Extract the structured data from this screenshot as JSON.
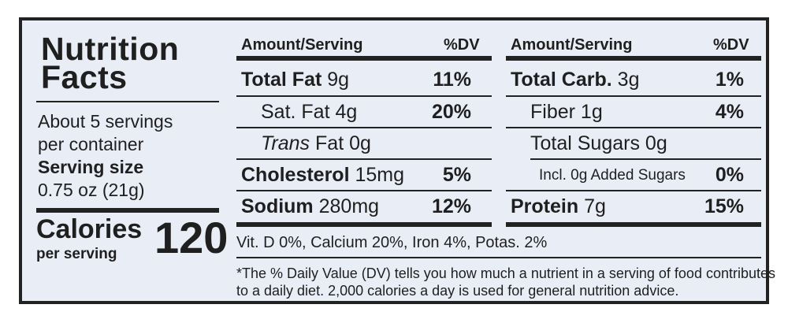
{
  "title": {
    "line1": "Nutrition",
    "line2": "Facts"
  },
  "servings": {
    "line1": "About 5 servings",
    "line2": "per container",
    "size_label": "Serving size",
    "size_value": "0.75 oz (21g)"
  },
  "calories": {
    "label": "Calories",
    "sub": "per serving",
    "value": "120"
  },
  "headers": {
    "amount": "Amount/Serving",
    "dv": "%DV"
  },
  "left_col": {
    "total_fat": {
      "name": "Total Fat",
      "amount": "9g",
      "dv": "11%"
    },
    "sat_fat": {
      "name": "Sat. Fat",
      "amount": "4g",
      "dv": "20%"
    },
    "trans_fat": {
      "name": "Trans",
      "rest": "Fat 0g"
    },
    "cholesterol": {
      "name": "Cholesterol",
      "amount": "15mg",
      "dv": "5%"
    },
    "sodium": {
      "name": "Sodium",
      "amount": "280mg",
      "dv": "12%"
    }
  },
  "right_col": {
    "total_carb": {
      "name": "Total Carb.",
      "amount": "3g",
      "dv": "1%"
    },
    "fiber": {
      "name": "Fiber",
      "amount": "1g",
      "dv": "4%"
    },
    "total_sugars": {
      "name": "Total Sugars",
      "amount": "0g"
    },
    "added_sugars": {
      "name": "Incl. 0g Added Sugars",
      "dv": "0%"
    },
    "protein": {
      "name": "Protein",
      "amount": "7g",
      "dv": "15%"
    }
  },
  "vitamins": "Vit. D 0%, Calcium 20%, Iron 4%, Potas. 2%",
  "footnote": {
    "line1": "*The % Daily Value (DV) tells you how much a nutrient in a serving of food contributes",
    "line2": "to a daily diet. 2,000 calories a day is used for general nutrition advice."
  }
}
